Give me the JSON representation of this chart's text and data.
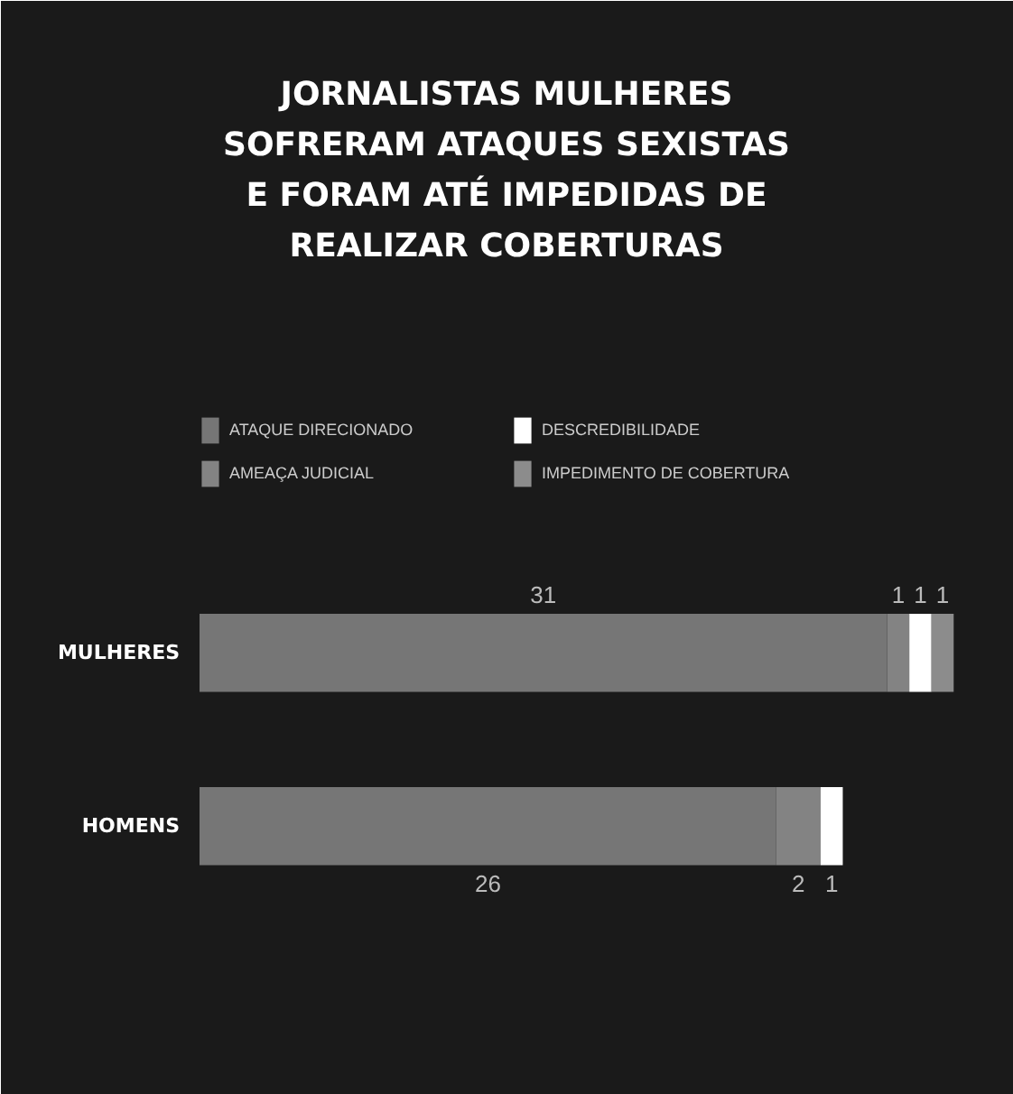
{
  "chart_data": {
    "type": "bar",
    "orientation": "horizontal",
    "stacked": true,
    "title": "JORNALISTAS MULHERES SOFRERAM ATAQUES SEXISTAS E FORAM ATÉ IMPEDIDAS DE REALIZAR COBERTURAS",
    "categories": [
      "MULHERES",
      "HOMENS"
    ],
    "series": [
      {
        "name": "ATAQUE DIRECIONADO",
        "color": "#767676",
        "values": [
          31,
          26
        ],
        "value_labels": [
          "31",
          "26"
        ]
      },
      {
        "name": "AMEAÇA JUDICIAL",
        "color": "#838383",
        "values": [
          1,
          2
        ],
        "value_labels": [
          "1",
          "2"
        ]
      },
      {
        "name": "DESCREDIBILIDADE",
        "color": "#ffffff",
        "values": [
          1,
          1
        ],
        "value_labels": [
          "1",
          "1"
        ]
      },
      {
        "name": "IMPEDIMENTO DE COBERTURA",
        "color": "#8c8c8c",
        "values": [
          1,
          0
        ],
        "value_labels": [
          "1",
          null
        ]
      }
    ],
    "legend": "top",
    "tick_labels": "y"
  }
}
